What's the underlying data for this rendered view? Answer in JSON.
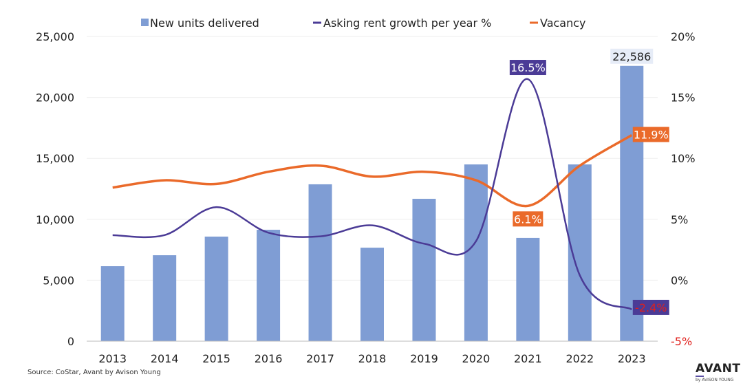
{
  "chart_data": {
    "type": "bar+line",
    "categories": [
      "2013",
      "2014",
      "2015",
      "2016",
      "2017",
      "2018",
      "2019",
      "2020",
      "2021",
      "2022",
      "2023"
    ],
    "left_axis": {
      "range": [
        0,
        25000
      ],
      "ticks": [
        "0",
        "5,000",
        "10,000",
        "15,000",
        "20,000",
        "25,000"
      ]
    },
    "right_axis": {
      "range": [
        -5,
        20
      ],
      "ticks": [
        "-5%",
        "0%",
        "5%",
        "10%",
        "15%",
        "20%"
      ]
    },
    "grid": true,
    "legend_placement": "top",
    "series": [
      {
        "name": "New units delivered",
        "type": "bar",
        "axis": "left",
        "color": "#7f9dd4",
        "values": [
          6150,
          7050,
          8580,
          9140,
          12870,
          7670,
          11680,
          14500,
          8470,
          14500,
          22586
        ]
      },
      {
        "name": "Asking rent growth per year %",
        "type": "line",
        "axis": "right",
        "color": "#4b3b96",
        "values": [
          3.7,
          3.7,
          6.0,
          3.9,
          3.6,
          4.5,
          3.0,
          3.2,
          16.5,
          0.4,
          -2.4
        ]
      },
      {
        "name": "Vacancy",
        "type": "line",
        "axis": "right",
        "color": "#ea6a2a",
        "values": [
          7.6,
          8.2,
          7.9,
          8.9,
          9.4,
          8.5,
          8.9,
          8.2,
          6.1,
          9.4,
          11.9
        ]
      }
    ],
    "data_labels": [
      {
        "series": 0,
        "index": 10,
        "text": "22,586"
      },
      {
        "series": 1,
        "index": 8,
        "text": "16.5%"
      },
      {
        "series": 1,
        "index": 10,
        "text": "-2.4%"
      },
      {
        "series": 2,
        "index": 8,
        "text": "6.1%"
      },
      {
        "series": 2,
        "index": 10,
        "text": "11.9%"
      }
    ]
  },
  "source": "Source: CoStar, Avant by Avison Young",
  "logo": {
    "name": "AVANT",
    "sub": "by AVISON YOUNG"
  }
}
